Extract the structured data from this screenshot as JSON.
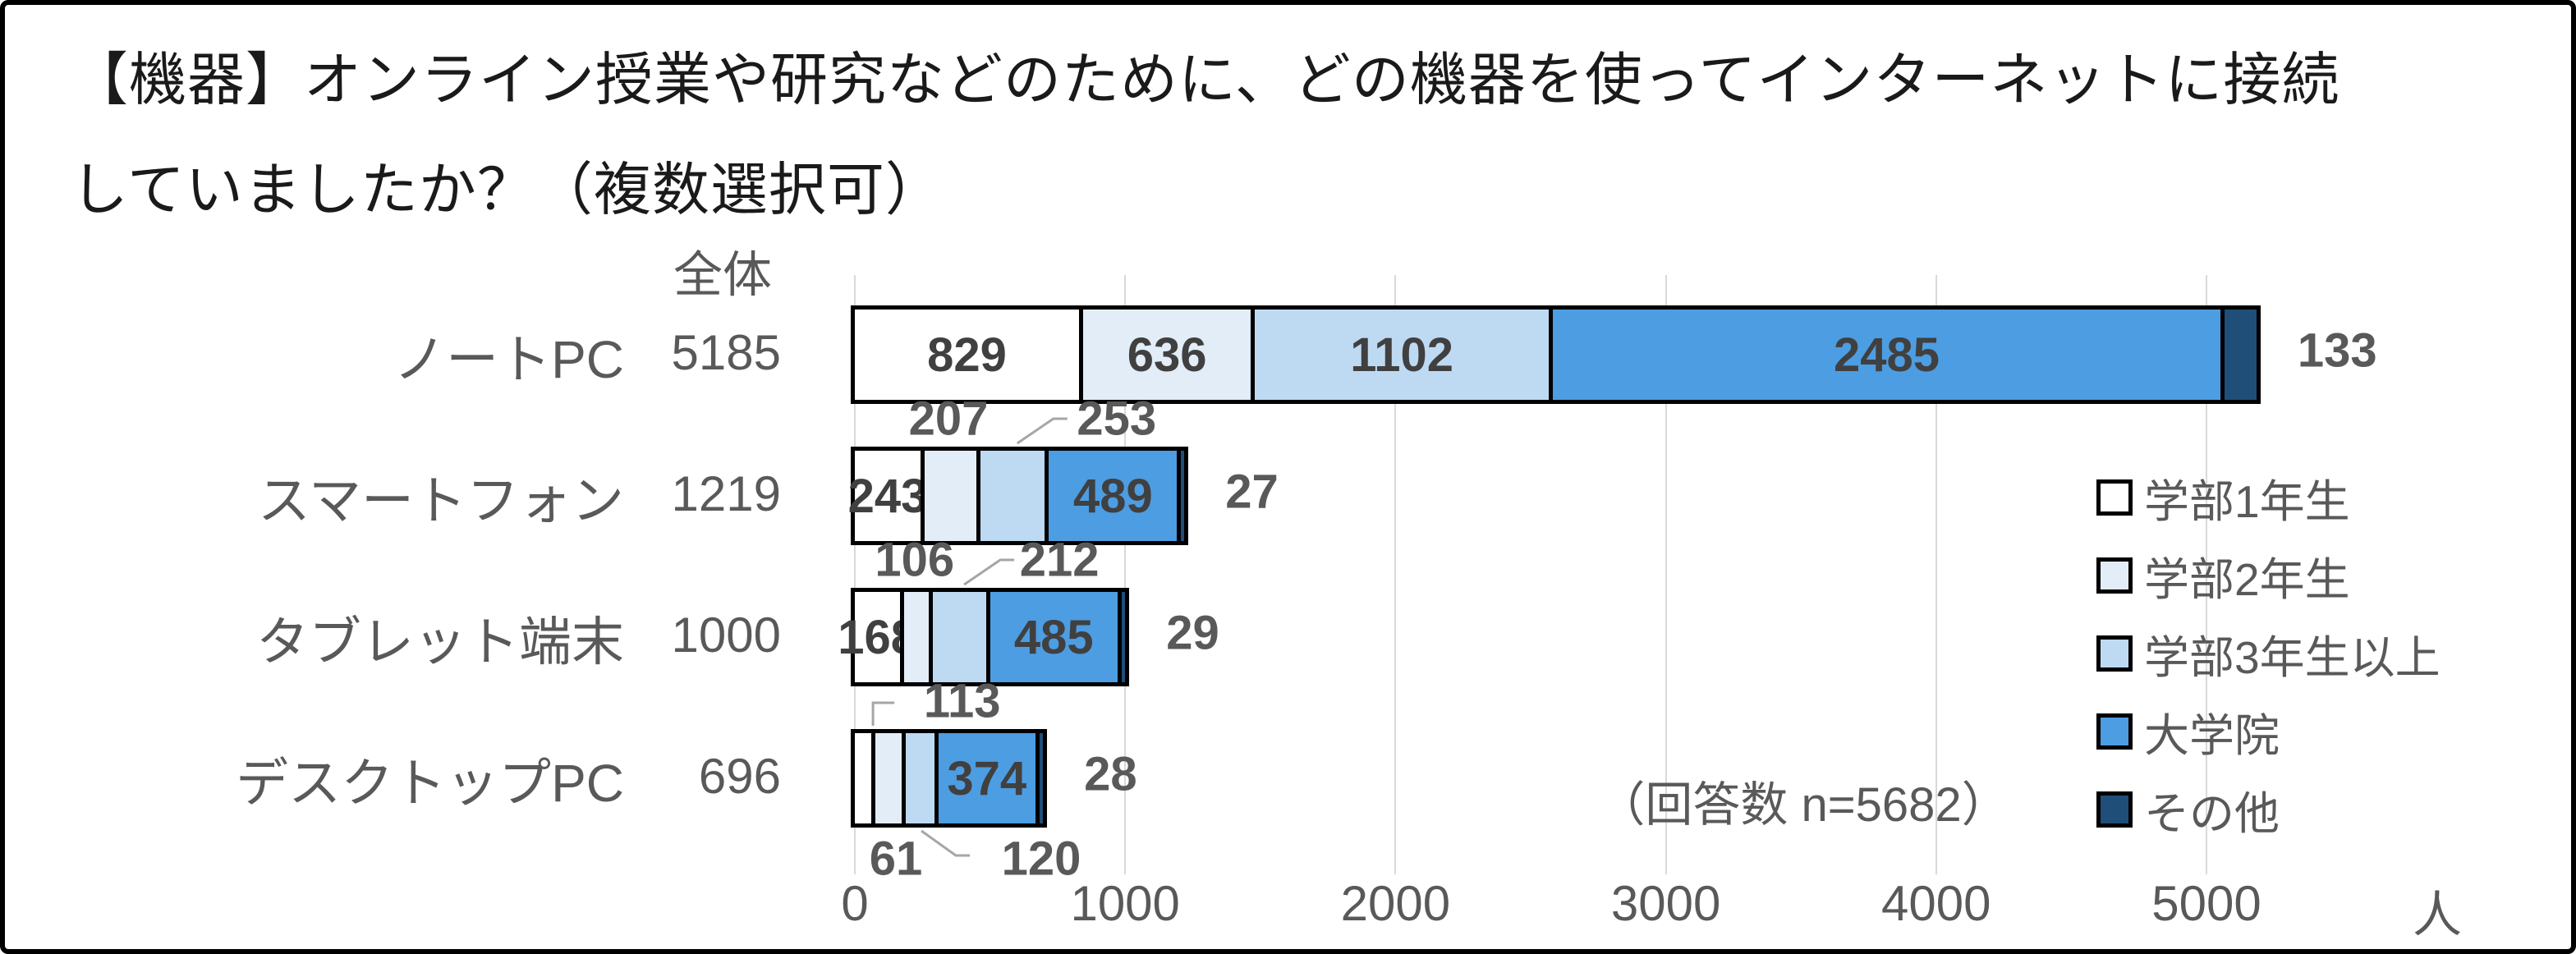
{
  "title": {
    "line1": "【機器】オンライン授業や研究などのために、どの機器を使ってインターネットに接続",
    "line2": "していましたか？（複数選択可）"
  },
  "chart_data": {
    "type": "bar",
    "orientation": "horizontal",
    "stacked": true,
    "overall_header": "全体",
    "note": "（回答数 n=5682）",
    "series_names": [
      "学部1年生",
      "学部2年生",
      "学部3年生以上",
      "大学院",
      "その他"
    ],
    "series_colors": [
      "#ffffff",
      "#e2edf8",
      "#bedaf2",
      "#4d9de2",
      "#1f4e79"
    ],
    "categories": [
      "ノートPC",
      "スマートフォン",
      "タブレット端末",
      "デスクトップPC"
    ],
    "totals": [
      5185,
      1219,
      1000,
      696
    ],
    "rows": [
      {
        "category": "ノートPC",
        "total": 5185,
        "segments": [
          {
            "value": 829,
            "label_pos": "inside"
          },
          {
            "value": 636,
            "label_pos": "inside"
          },
          {
            "value": 1102,
            "label_pos": "inside"
          },
          {
            "value": 2485,
            "label_pos": "inside"
          },
          {
            "value": 133,
            "label_pos": "right"
          }
        ]
      },
      {
        "category": "スマートフォン",
        "total": 1219,
        "segments": [
          {
            "value": 243,
            "label_pos": "inside"
          },
          {
            "value": 207,
            "label_pos": "above",
            "label_dx": 0
          },
          {
            "value": 253,
            "label_pos": "above",
            "label_dx": 129,
            "leader": "diag-up"
          },
          {
            "value": 489,
            "label_pos": "inside"
          },
          {
            "value": 27,
            "label_pos": "right"
          }
        ]
      },
      {
        "category": "タブレット端末",
        "total": 1000,
        "segments": [
          {
            "value": 168,
            "label_pos": "inside"
          },
          {
            "value": 106,
            "label_pos": "above",
            "label_dx": 0
          },
          {
            "value": 212,
            "label_pos": "above",
            "label_dx": 124,
            "leader": "diag-up"
          },
          {
            "value": 485,
            "label_pos": "inside"
          },
          {
            "value": 29,
            "label_pos": "right"
          }
        ]
      },
      {
        "category": "デスクトップPC",
        "total": 696,
        "segments": [
          {
            "value": 61,
            "label_pos": "below",
            "label_dx": 40
          },
          {
            "value": 113,
            "label_pos": "above",
            "label_dx": 92,
            "leader": "hook-up"
          },
          {
            "value": 120,
            "label_pos": "below",
            "label_dx": 150,
            "leader": "diag-down"
          },
          {
            "value": 374,
            "label_pos": "inside"
          },
          {
            "value": 28,
            "label_pos": "right"
          }
        ]
      }
    ],
    "x_axis": {
      "ticks": [
        "0",
        "1000",
        "2000",
        "3000",
        "4000",
        "5000"
      ],
      "tick_values": [
        0,
        1000,
        2000,
        3000,
        4000,
        5000
      ],
      "max": 5000,
      "unit": "人"
    },
    "legend": {
      "position": "right",
      "entries": [
        {
          "label": "学部1年生",
          "color": "#ffffff"
        },
        {
          "label": "学部2年生",
          "color": "#e2edf8"
        },
        {
          "label": "学部3年生以上",
          "color": "#bedaf2"
        },
        {
          "label": "大学院",
          "color": "#4d9de2"
        },
        {
          "label": "その他",
          "color": "#1f4e79"
        }
      ]
    }
  }
}
